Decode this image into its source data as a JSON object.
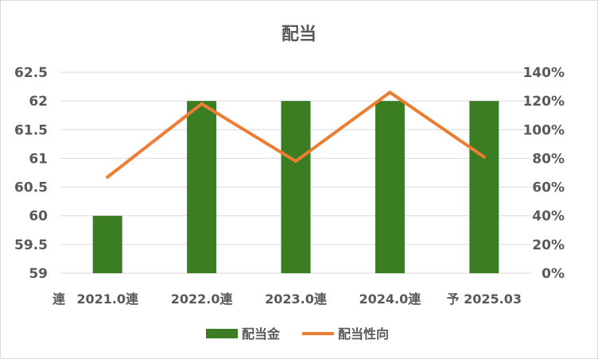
{
  "chart_data": {
    "type": "bar",
    "title": "配当",
    "categories": [
      "2021.0連",
      "2022.0連",
      "2023.0連",
      "2024.0連",
      "予 2025.03"
    ],
    "leading_label": "連",
    "series": [
      {
        "name": "配当金",
        "type": "bar",
        "axis": "left",
        "values": [
          60,
          62,
          62,
          62,
          62
        ],
        "color": "#3b7d23"
      },
      {
        "name": "配当性向",
        "type": "line",
        "axis": "right",
        "values": [
          0.67,
          1.18,
          0.78,
          1.26,
          0.81
        ],
        "color": "#ed7d31"
      }
    ],
    "y_left": {
      "min": 59,
      "max": 62.5,
      "step": 0.5,
      "ticks": [
        "59",
        "59.5",
        "60",
        "60.5",
        "61",
        "61.5",
        "62",
        "62.5"
      ]
    },
    "y_right": {
      "min": 0,
      "max": 1.4,
      "step": 0.2,
      "ticks": [
        "0%",
        "20%",
        "40%",
        "60%",
        "80%",
        "100%",
        "120%",
        "140%"
      ]
    },
    "grid": true,
    "legend_position": "bottom"
  }
}
